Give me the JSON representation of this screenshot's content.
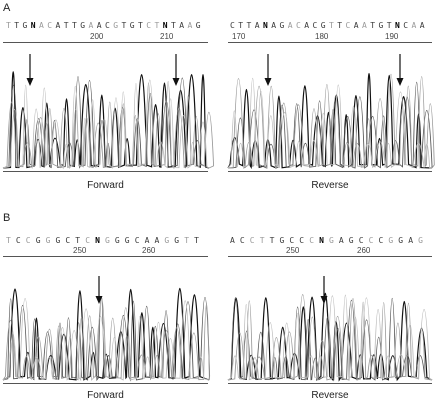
{
  "panels": [
    {
      "label": "A",
      "forward": {
        "sequence": "TTGNACATTGAACGTGTCTNTAAG",
        "positions": [
          "200",
          "210"
        ],
        "caption": "Forward"
      },
      "reverse": {
        "sequence": "CTTANAGACACGTTCAATGTNCAA",
        "positions": [
          "170",
          "180",
          "190"
        ],
        "caption": "Reverse"
      }
    },
    {
      "label": "B",
      "forward": {
        "sequence": "TCCGGGCTCNGGGCAAGGTT",
        "positions": [
          "250",
          "260"
        ],
        "caption": "Forward"
      },
      "reverse": {
        "sequence": "ACCTTGCCCNGAGCCCGGAG",
        "positions": [
          "250",
          "260"
        ],
        "caption": "Reverse"
      }
    }
  ]
}
